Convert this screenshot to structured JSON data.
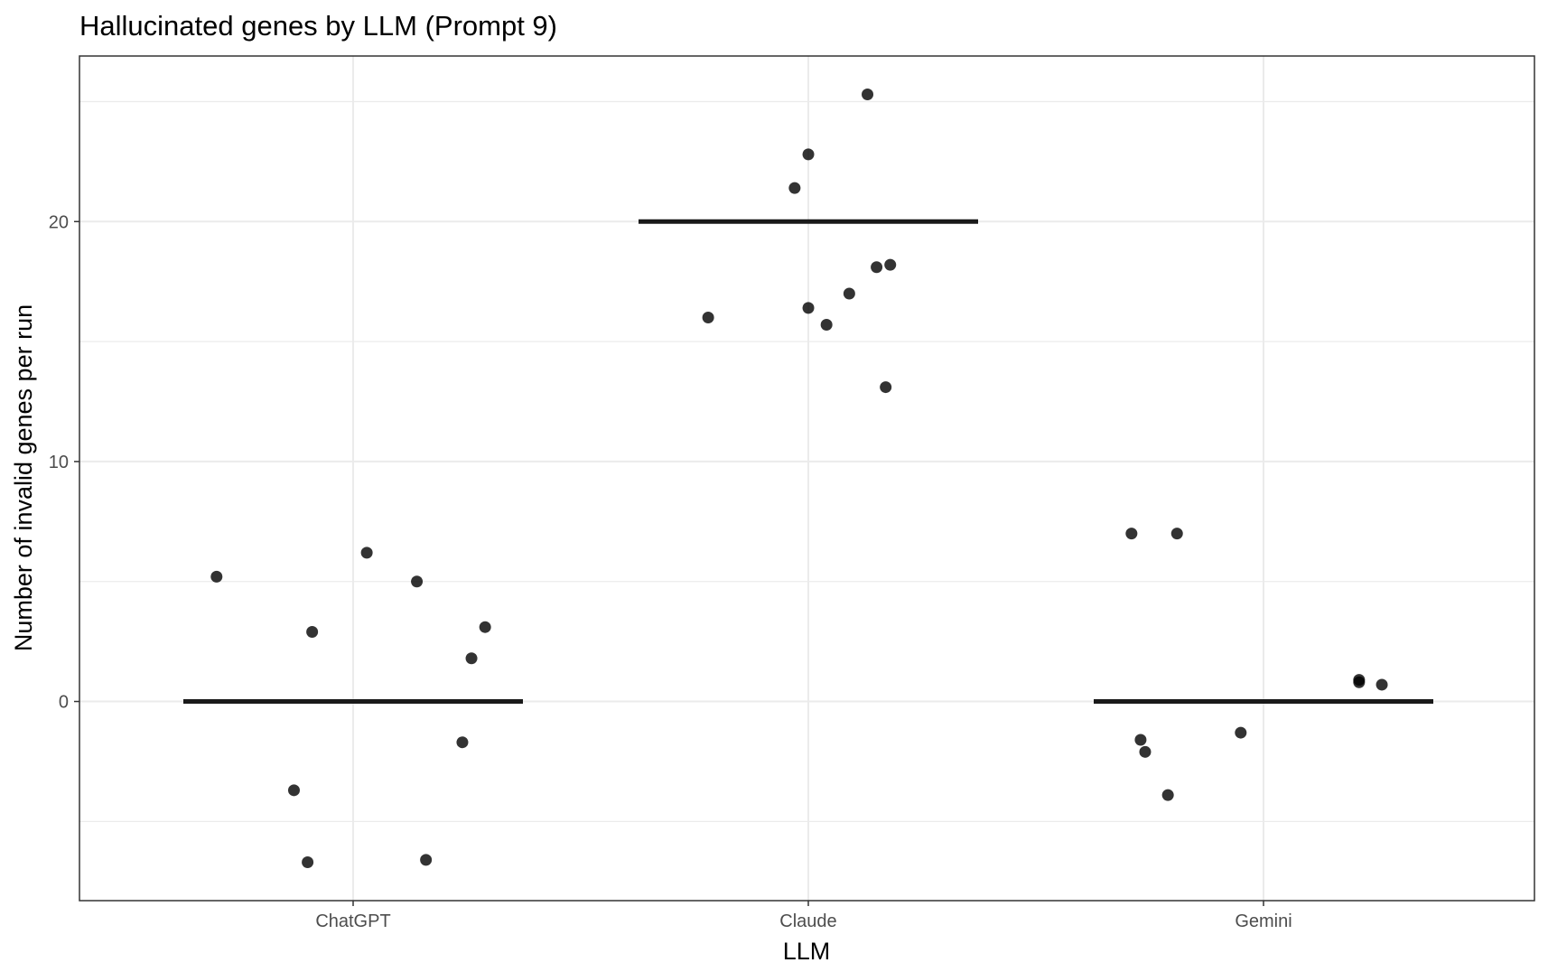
{
  "chart_data": {
    "type": "scatter",
    "title": "Hallucinated genes by LLM (Prompt 9)",
    "xlabel": "LLM",
    "ylabel": "Number of invalid genes per run",
    "categories": [
      "ChatGPT",
      "Claude",
      "Gemini"
    ],
    "ylim": [
      -8.3,
      26.9
    ],
    "yticks": [
      0,
      10,
      20
    ],
    "ytick_labels": [
      "0",
      "10",
      "20"
    ],
    "grid": true,
    "points": [
      {
        "category": "ChatGPT",
        "jitter": -0.3,
        "y": 5.2
      },
      {
        "category": "ChatGPT",
        "jitter": 0.03,
        "y": 6.2
      },
      {
        "category": "ChatGPT",
        "jitter": 0.14,
        "y": 5.0
      },
      {
        "category": "ChatGPT",
        "jitter": -0.09,
        "y": 2.9
      },
      {
        "category": "ChatGPT",
        "jitter": 0.29,
        "y": 3.1
      },
      {
        "category": "ChatGPT",
        "jitter": 0.26,
        "y": 1.8
      },
      {
        "category": "ChatGPT",
        "jitter": 0.24,
        "y": -1.7
      },
      {
        "category": "ChatGPT",
        "jitter": -0.13,
        "y": -3.7
      },
      {
        "category": "ChatGPT",
        "jitter": -0.1,
        "y": -6.7
      },
      {
        "category": "ChatGPT",
        "jitter": 0.16,
        "y": -6.6
      },
      {
        "category": "Claude",
        "jitter": 0.13,
        "y": 25.3
      },
      {
        "category": "Claude",
        "jitter": 0.0,
        "y": 22.8
      },
      {
        "category": "Claude",
        "jitter": -0.03,
        "y": 21.4
      },
      {
        "category": "Claude",
        "jitter": 0.15,
        "y": 18.1
      },
      {
        "category": "Claude",
        "jitter": 0.18,
        "y": 18.2
      },
      {
        "category": "Claude",
        "jitter": 0.09,
        "y": 17.0
      },
      {
        "category": "Claude",
        "jitter": -0.22,
        "y": 16.0
      },
      {
        "category": "Claude",
        "jitter": 0.0,
        "y": 16.4
      },
      {
        "category": "Claude",
        "jitter": 0.04,
        "y": 15.7
      },
      {
        "category": "Claude",
        "jitter": 0.17,
        "y": 13.1
      },
      {
        "category": "Gemini",
        "jitter": -0.29,
        "y": 7.0
      },
      {
        "category": "Gemini",
        "jitter": -0.19,
        "y": 7.0
      },
      {
        "category": "Gemini",
        "jitter": 0.21,
        "y": 0.9
      },
      {
        "category": "Gemini",
        "jitter": 0.21,
        "y": 0.8
      },
      {
        "category": "Gemini",
        "jitter": 0.26,
        "y": 0.7
      },
      {
        "category": "Gemini",
        "jitter": -0.27,
        "y": -1.6
      },
      {
        "category": "Gemini",
        "jitter": -0.26,
        "y": -2.1
      },
      {
        "category": "Gemini",
        "jitter": -0.05,
        "y": -1.3
      },
      {
        "category": "Gemini",
        "jitter": -0.21,
        "y": -3.9
      }
    ],
    "summary_lines": [
      {
        "category": "ChatGPT",
        "y": 0
      },
      {
        "category": "Claude",
        "y": 20
      },
      {
        "category": "Gemini",
        "y": 0
      }
    ],
    "colors": {
      "point": "#000000",
      "summary_line": "#1a1a1a",
      "grid": "#ebebeb",
      "panel_border": "#333333"
    }
  }
}
